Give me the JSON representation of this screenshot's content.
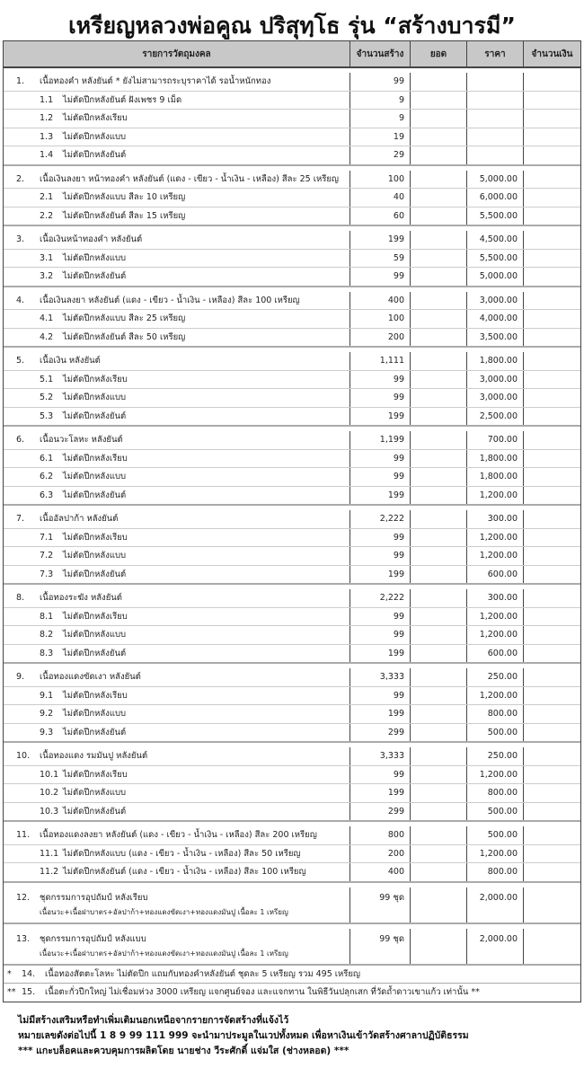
{
  "title": "เหรียญหลวงพ่อคูณ ปริสุทฺโธ รุ่น “สร้างบารมี”",
  "headers": [
    "รายการวัตถุมงคล",
    "จำนวนสร้าง",
    "ยอด",
    "ราคา",
    "จำนวนเงิน"
  ],
  "groups": [
    {
      "rows": [
        {
          "no": "1.",
          "name": "เนื้อทองคำ หลังยันต์  * ยังไม่สามารถระบุราคาได้ รอน้ำหนักทอง",
          "qty": "99",
          "price": ""
        },
        {
          "no": "1.1",
          "name": "ไม่ตัดปีกหลังยันต์ ฝังเพชร 9 เม็ด",
          "qty": "9",
          "price": ""
        },
        {
          "no": "1.2",
          "name": "ไม่ตัดปีกหลังเรียบ",
          "qty": "9",
          "price": ""
        },
        {
          "no": "1.3",
          "name": "ไม่ตัดปีกหลังแบบ",
          "qty": "19",
          "price": ""
        },
        {
          "no": "1.4",
          "name": "ไม่ตัดปีกหลังยันต์",
          "qty": "29",
          "price": ""
        }
      ]
    },
    {
      "rows": [
        {
          "no": "2.",
          "name": "เนื้อเงินลงยา หน้าทองคำ หลังยันต์ (แดง - เขียว - น้ำเงิน - เหลือง)  สีละ 25 เหรียญ",
          "qty": "100",
          "price": "5,000.00"
        },
        {
          "no": "2.1",
          "name": "ไม่ตัดปีกหลังแบบ สีละ 10 เหรียญ",
          "qty": "40",
          "price": "6,000.00"
        },
        {
          "no": "2.2",
          "name": "ไม่ตัดปีกหลังยันต์ สีละ 15 เหรียญ",
          "qty": "60",
          "price": "5,500.00"
        }
      ]
    },
    {
      "rows": [
        {
          "no": "3.",
          "name": "เนื้อเงินหน้าทองคำ หลังยันต์",
          "qty": "199",
          "price": "4,500.00"
        },
        {
          "no": "3.1",
          "name": "ไม่ตัดปีกหลังแบบ",
          "qty": "59",
          "price": "5,500.00"
        },
        {
          "no": "3.2",
          "name": "ไม่ตัดปีกหลังยันต์",
          "qty": "99",
          "price": "5,000.00"
        }
      ]
    },
    {
      "rows": [
        {
          "no": "4.",
          "name": "เนื้อเงินลงยา หลังยันต์ (แดง - เขียว - น้ำเงิน - เหลือง) สีละ 100 เหรียญ",
          "qty": "400",
          "price": "3,000.00"
        },
        {
          "no": "4.1",
          "name": "ไม่ตัดปีกหลังแบบ สีละ 25 เหรียญ",
          "qty": "100",
          "price": "4,000.00"
        },
        {
          "no": "4.2",
          "name": "ไม่ตัดปีกหลังยันต์ สีละ 50 เหรียญ",
          "qty": "200",
          "price": "3,500.00"
        }
      ]
    },
    {
      "rows": [
        {
          "no": "5.",
          "name": "เนื้อเงิน หลังยันต์",
          "qty": "1,111",
          "price": "1,800.00"
        },
        {
          "no": "5.1",
          "name": "ไม่ตัดปีกหลังเรียบ",
          "qty": "99",
          "price": "3,000.00"
        },
        {
          "no": "5.2",
          "name": "ไม่ตัดปีกหลังแบบ",
          "qty": "99",
          "price": "3,000.00"
        },
        {
          "no": "5.3",
          "name": "ไม่ตัดปีกหลังยันต์",
          "qty": "199",
          "price": "2,500.00"
        }
      ]
    },
    {
      "rows": [
        {
          "no": "6.",
          "name": "เนื้อนวะโลหะ หลังยันต์",
          "qty": "1,199",
          "price": "700.00"
        },
        {
          "no": "6.1",
          "name": "ไม่ตัดปีกหลังเรียบ",
          "qty": "99",
          "price": "1,800.00"
        },
        {
          "no": "6.2",
          "name": "ไม่ตัดปีกหลังแบบ",
          "qty": "99",
          "price": "1,800.00"
        },
        {
          "no": "6.3",
          "name": "ไม่ตัดปีกหลังยันต์",
          "qty": "199",
          "price": "1,200.00"
        }
      ]
    },
    {
      "rows": [
        {
          "no": "7.",
          "name": "เนื้ออัลปาก้า หลังยันต์",
          "qty": "2,222",
          "price": "300.00"
        },
        {
          "no": "7.1",
          "name": "ไม่ตัดปีกหลังเรียบ",
          "qty": "99",
          "price": "1,200.00"
        },
        {
          "no": "7.2",
          "name": "ไม่ตัดปีกหลังแบบ",
          "qty": "99",
          "price": "1,200.00"
        },
        {
          "no": "7.3",
          "name": "ไม่ตัดปีกหลังยันต์",
          "qty": "199",
          "price": "600.00"
        }
      ]
    },
    {
      "rows": [
        {
          "no": "8.",
          "name": "เนื้อทองระฆัง หลังยันต์",
          "qty": "2,222",
          "price": "300.00"
        },
        {
          "no": "8.1",
          "name": "ไม่ตัดปีกหลังเรียบ",
          "qty": "99",
          "price": "1,200.00"
        },
        {
          "no": "8.2",
          "name": "ไม่ตัดปีกหลังแบบ",
          "qty": "99",
          "price": "1,200.00"
        },
        {
          "no": "8.3",
          "name": "ไม่ตัดปีกหลังยันต์",
          "qty": "199",
          "price": "600.00"
        }
      ]
    },
    {
      "rows": [
        {
          "no": "9.",
          "name": "เนื้อทองแดงขัดเงา หลังยันต์",
          "qty": "3,333",
          "price": "250.00"
        },
        {
          "no": "9.1",
          "name": "ไม่ตัดปีกหลังเรียบ",
          "qty": "99",
          "price": "1,200.00"
        },
        {
          "no": "9.2",
          "name": "ไม่ตัดปีกหลังแบบ",
          "qty": "199",
          "price": "800.00"
        },
        {
          "no": "9.3",
          "name": "ไม่ตัดปีกหลังยันต์",
          "qty": "299",
          "price": "500.00"
        }
      ]
    },
    {
      "rows": [
        {
          "no": "10.",
          "name": "เนื้อทองแดง รมมันปู หลังยันต์",
          "qty": "3,333",
          "price": "250.00"
        },
        {
          "no": "10.1",
          "name": "ไม่ตัดปีกหลังเรียบ",
          "qty": "99",
          "price": "1,200.00"
        },
        {
          "no": "10.2",
          "name": "ไม่ตัดปีกหลังแบบ",
          "qty": "199",
          "price": "800.00"
        },
        {
          "no": "10.3",
          "name": "ไม่ตัดปีกหลังยันต์",
          "qty": "299",
          "price": "500.00"
        }
      ]
    },
    {
      "rows": [
        {
          "no": "11.",
          "name": "เนื้อทองแดงลงยา หลังยันต์ (แดง - เขียว - น้ำเงิน - เหลือง) สีละ 200 เหรียญ",
          "qty": "800",
          "price": "500.00"
        },
        {
          "no": "11.1",
          "name": "ไม่ตัดปีกหลังแบบ (แดง - เขียว - น้ำเงิน - เหลือง) สีละ 50 เหรียญ",
          "qty": "200",
          "price": "1,200.00"
        },
        {
          "no": "11.2",
          "name": "ไม่ตัดปีกหลังยันต์ (แดง - เขียว - น้ำเงิน - เหลือง) สีละ 100 เหรียญ",
          "qty": "400",
          "price": "800.00"
        }
      ]
    },
    {
      "rows": [
        {
          "no": "12.",
          "name": "ชุดกรรมการอุปถัมป์ หลังเรียบ",
          "note": "เนื้อนวะ+เนื้อฝาบาตร+อัลปาก้า+ทองแดงขัดเงา+ทองแดงมันปู เนื้อละ 1 เหรียญ",
          "qty": "99 ชุด",
          "price": "2,000.00"
        }
      ]
    },
    {
      "rows": [
        {
          "no": "13.",
          "name": "ชุดกรรมการอุปถัมป์ หลังแบบ",
          "note": "เนื้อนวะ+เนื้อฝาบาตร+อัลปาก้า+ทองแดงขัดเงา+ทองแดงมันปู เนื้อละ 1 เหรียญ",
          "qty": "99 ชุด",
          "price": "2,000.00"
        }
      ]
    }
  ],
  "extras": [
    {
      "mark": "*",
      "no": "14.",
      "text": "เนื้อทองสัตตะโลหะ ไม่ตัดปีก แถมกับทองคำหลังยันต์ ชุดละ 5 เหรียญ รวม 495 เหรียญ"
    },
    {
      "mark": "**",
      "no": "15.",
      "text": "เนื้อตะกั่วปีกใหญ่ ไม่เชื่อมห่วง 3000 เหรียญ แจกศูนย์จอง และแจกทาน ในพิธีวันปลุกเสก ที่วัดถ้ำดาวเขาแก้ว เท่านั้น **"
    }
  ],
  "footer": [
    "ไม่มีสร้างเสริมหรือทำเพิ่มเติมนอกเหนือจากรายการจัดสร้างที่แจ้งไว้",
    "หมายเลขดังต่อไปนี้  1 8 9 99 111 999  จะนำมาประมูลในเวปทั้งหมด เพื่อหาเงินเข้าวัดสร้างศาลาปฏิบัติธรรม",
    "*** แกะบล็อคและควบคุมการผลิตโดย นายช่าง วีระศักดิ์ แจ่มใส (ช่างหลอด) ***"
  ]
}
